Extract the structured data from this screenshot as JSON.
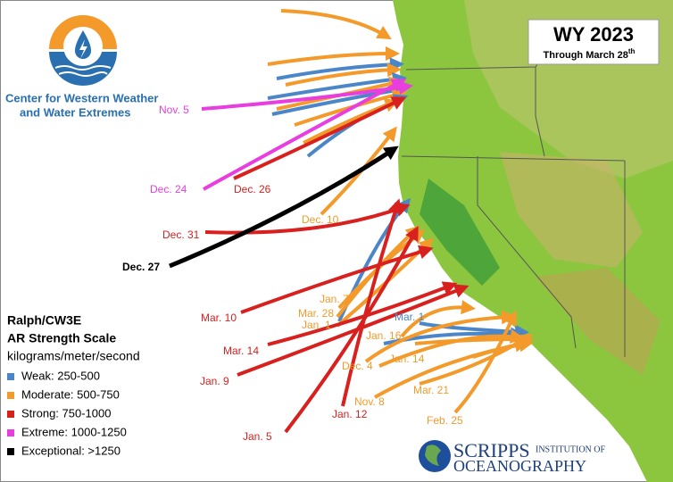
{
  "org": {
    "line1": "Center for Western Weather",
    "line2": "and Water Extremes",
    "color": "#2a6fb0"
  },
  "badge": {
    "title": "WY 2023",
    "subtitle": "Through March 28",
    "superscript": "th"
  },
  "legend": {
    "title_line1": "Ralph/CW3E",
    "title_line2": "AR Strength Scale",
    "units": "kilograms/meter/second",
    "items": [
      {
        "label": "Weak:  250-500",
        "color": "#4a86c8",
        "events": [
          "Mar. 1"
        ]
      },
      {
        "label": "Moderate:  500-750",
        "color": "#f39a2a",
        "events": [
          "Dec. 10",
          "Jan. 7",
          "Mar. 28",
          "Jan. 1",
          "Jan. 16",
          "Dec. 4",
          "Jan. 14",
          "Nov. 8",
          "Mar. 21",
          "Feb. 25"
        ]
      },
      {
        "label": "Strong:  750-1000",
        "color": "#d8201f",
        "events": [
          "Dec. 26",
          "Dec. 31",
          "Mar. 10",
          "Mar. 14",
          "Jan. 9",
          "Jan. 12",
          "Jan. 5"
        ]
      },
      {
        "label": "Extreme:  1000-1250",
        "color": "#e83ee0",
        "events": [
          "Nov. 5",
          "Dec. 24"
        ]
      },
      {
        "label": "Exceptional:  >1250",
        "color": "#000000",
        "events": [
          "Dec. 27"
        ]
      }
    ]
  },
  "footer": {
    "word1": "SCRIPPS",
    "word2": "INSTITUTION OF",
    "word3": "OCEANOGRAPHY"
  }
}
